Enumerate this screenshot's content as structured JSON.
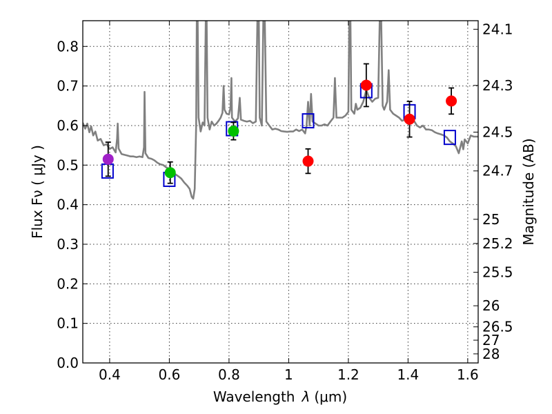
{
  "chart_data": {
    "type": "scatter",
    "xlabel_text": "Wavelength",
    "xlabel_symbol": "λ",
    "xlabel_unit": "(μm)",
    "ylabel_left": "Flux  Fν  ( μJy )",
    "ylabel_right": "Magnitude (AB)",
    "xlim": [
      0.31,
      1.635
    ],
    "ylim": [
      0.0,
      0.865
    ],
    "x_ticks": [
      {
        "v": 0.4,
        "label": "0.4"
      },
      {
        "v": 0.6,
        "label": "0.6"
      },
      {
        "v": 0.8,
        "label": "0.8"
      },
      {
        "v": 1.0,
        "label": "1"
      },
      {
        "v": 1.2,
        "label": "1.2"
      },
      {
        "v": 1.4,
        "label": "1.4"
      },
      {
        "v": 1.6,
        "label": "1.6"
      }
    ],
    "y_ticks": [
      {
        "v": 0.0,
        "label": "0.0"
      },
      {
        "v": 0.1,
        "label": "0.1"
      },
      {
        "v": 0.2,
        "label": "0.2"
      },
      {
        "v": 0.3,
        "label": "0.3"
      },
      {
        "v": 0.4,
        "label": "0.4"
      },
      {
        "v": 0.5,
        "label": "0.5"
      },
      {
        "v": 0.6,
        "label": "0.6"
      },
      {
        "v": 0.7,
        "label": "0.7"
      },
      {
        "v": 0.8,
        "label": "0.8"
      }
    ],
    "mag_ticks": [
      {
        "flux": 0.8434,
        "label": "24.1"
      },
      {
        "flux": 0.7015,
        "label": "24.3"
      },
      {
        "flux": 0.5834,
        "label": "24.5"
      },
      {
        "flux": 0.4853,
        "label": "24.7"
      },
      {
        "flux": 0.3631,
        "label": "25"
      },
      {
        "flux": 0.302,
        "label": "25.2"
      },
      {
        "flux": 0.2291,
        "label": "25.5"
      },
      {
        "flux": 0.1445,
        "label": "26"
      },
      {
        "flux": 0.0912,
        "label": "26.5"
      },
      {
        "flux": 0.0575,
        "label": "27"
      },
      {
        "flux": 0.0229,
        "label": "28"
      }
    ],
    "observed_points": [
      {
        "band": "violet",
        "x": 0.395,
        "y": 0.515,
        "err": 0.043,
        "color": "#a020c8"
      },
      {
        "band": "green-1",
        "x": 0.603,
        "y": 0.481,
        "err": 0.027,
        "color": "#00c000"
      },
      {
        "band": "green-2",
        "x": 0.815,
        "y": 0.586,
        "err": 0.022,
        "color": "#00c000"
      },
      {
        "band": "red-1",
        "x": 1.065,
        "y": 0.51,
        "err": 0.031,
        "color": "#ff0000"
      },
      {
        "band": "red-2",
        "x": 1.26,
        "y": 0.702,
        "err": 0.054,
        "color": "#ff0000"
      },
      {
        "band": "red-3",
        "x": 1.405,
        "y": 0.616,
        "err": 0.045,
        "color": "#ff0000"
      },
      {
        "band": "red-4",
        "x": 1.545,
        "y": 0.662,
        "err": 0.033,
        "color": "#ff0000"
      }
    ],
    "model_points": [
      {
        "x": 0.393,
        "y": 0.485
      },
      {
        "x": 0.6,
        "y": 0.464
      },
      {
        "x": 0.81,
        "y": 0.592
      },
      {
        "x": 1.065,
        "y": 0.612
      },
      {
        "x": 1.26,
        "y": 0.688
      },
      {
        "x": 1.405,
        "y": 0.635
      },
      {
        "x": 1.54,
        "y": 0.57
      }
    ],
    "sed_curve": [
      [
        0.31,
        0.607
      ],
      [
        0.318,
        0.592
      ],
      [
        0.325,
        0.605
      ],
      [
        0.332,
        0.583
      ],
      [
        0.338,
        0.598
      ],
      [
        0.345,
        0.575
      ],
      [
        0.352,
        0.585
      ],
      [
        0.36,
        0.562
      ],
      [
        0.37,
        0.566
      ],
      [
        0.38,
        0.55
      ],
      [
        0.39,
        0.553
      ],
      [
        0.4,
        0.541
      ],
      [
        0.41,
        0.545
      ],
      [
        0.42,
        0.532
      ],
      [
        0.425,
        0.567
      ],
      [
        0.427,
        0.605
      ],
      [
        0.43,
        0.542
      ],
      [
        0.44,
        0.528
      ],
      [
        0.45,
        0.526
      ],
      [
        0.46,
        0.524
      ],
      [
        0.47,
        0.522
      ],
      [
        0.48,
        0.522
      ],
      [
        0.49,
        0.52
      ],
      [
        0.5,
        0.522
      ],
      [
        0.51,
        0.52
      ],
      [
        0.515,
        0.545
      ],
      [
        0.517,
        0.685
      ],
      [
        0.52,
        0.53
      ],
      [
        0.53,
        0.518
      ],
      [
        0.54,
        0.516
      ],
      [
        0.55,
        0.512
      ],
      [
        0.56,
        0.506
      ],
      [
        0.57,
        0.502
      ],
      [
        0.58,
        0.5
      ],
      [
        0.59,
        0.494
      ],
      [
        0.6,
        0.49
      ],
      [
        0.61,
        0.484
      ],
      [
        0.62,
        0.477
      ],
      [
        0.63,
        0.472
      ],
      [
        0.64,
        0.466
      ],
      [
        0.65,
        0.456
      ],
      [
        0.66,
        0.448
      ],
      [
        0.668,
        0.44
      ],
      [
        0.675,
        0.42
      ],
      [
        0.68,
        0.415
      ],
      [
        0.685,
        0.44
      ],
      [
        0.69,
        0.6
      ],
      [
        0.692,
        0.865
      ],
      [
        0.695,
        0.865
      ],
      [
        0.698,
        0.62
      ],
      [
        0.705,
        0.585
      ],
      [
        0.712,
        0.608
      ],
      [
        0.718,
        0.6
      ],
      [
        0.722,
        0.865
      ],
      [
        0.725,
        0.865
      ],
      [
        0.728,
        0.62
      ],
      [
        0.735,
        0.59
      ],
      [
        0.742,
        0.61
      ],
      [
        0.75,
        0.6
      ],
      [
        0.758,
        0.605
      ],
      [
        0.765,
        0.612
      ],
      [
        0.772,
        0.62
      ],
      [
        0.778,
        0.632
      ],
      [
        0.782,
        0.7
      ],
      [
        0.785,
        0.64
      ],
      [
        0.792,
        0.63
      ],
      [
        0.8,
        0.628
      ],
      [
        0.805,
        0.645
      ],
      [
        0.808,
        0.72
      ],
      [
        0.81,
        0.62
      ],
      [
        0.82,
        0.61
      ],
      [
        0.83,
        0.618
      ],
      [
        0.836,
        0.67
      ],
      [
        0.84,
        0.615
      ],
      [
        0.85,
        0.612
      ],
      [
        0.86,
        0.61
      ],
      [
        0.87,
        0.612
      ],
      [
        0.88,
        0.606
      ],
      [
        0.89,
        0.61
      ],
      [
        0.895,
        0.865
      ],
      [
        0.9,
        0.865
      ],
      [
        0.903,
        0.62
      ],
      [
        0.91,
        0.6
      ],
      [
        0.915,
        0.865
      ],
      [
        0.92,
        0.865
      ],
      [
        0.925,
        0.61
      ],
      [
        0.935,
        0.6
      ],
      [
        0.945,
        0.59
      ],
      [
        0.955,
        0.592
      ],
      [
        0.965,
        0.59
      ],
      [
        0.975,
        0.586
      ],
      [
        0.985,
        0.585
      ],
      [
        0.995,
        0.584
      ],
      [
        1.005,
        0.585
      ],
      [
        1.015,
        0.585
      ],
      [
        1.025,
        0.59
      ],
      [
        1.035,
        0.586
      ],
      [
        1.045,
        0.59
      ],
      [
        1.055,
        0.58
      ],
      [
        1.06,
        0.6
      ],
      [
        1.065,
        0.66
      ],
      [
        1.07,
        0.6
      ],
      [
        1.075,
        0.68
      ],
      [
        1.08,
        0.61
      ],
      [
        1.09,
        0.605
      ],
      [
        1.1,
        0.6
      ],
      [
        1.11,
        0.6
      ],
      [
        1.12,
        0.603
      ],
      [
        1.13,
        0.6
      ],
      [
        1.14,
        0.61
      ],
      [
        1.15,
        0.62
      ],
      [
        1.155,
        0.72
      ],
      [
        1.16,
        0.62
      ],
      [
        1.17,
        0.62
      ],
      [
        1.18,
        0.62
      ],
      [
        1.19,
        0.625
      ],
      [
        1.2,
        0.635
      ],
      [
        1.203,
        0.865
      ],
      [
        1.207,
        0.865
      ],
      [
        1.21,
        0.64
      ],
      [
        1.22,
        0.63
      ],
      [
        1.225,
        0.655
      ],
      [
        1.23,
        0.64
      ],
      [
        1.24,
        0.645
      ],
      [
        1.25,
        0.66
      ],
      [
        1.26,
        0.69
      ],
      [
        1.27,
        0.67
      ],
      [
        1.28,
        0.66
      ],
      [
        1.29,
        0.668
      ],
      [
        1.3,
        0.67
      ],
      [
        1.305,
        0.865
      ],
      [
        1.31,
        0.865
      ],
      [
        1.315,
        0.65
      ],
      [
        1.32,
        0.64
      ],
      [
        1.33,
        0.66
      ],
      [
        1.335,
        0.74
      ],
      [
        1.34,
        0.64
      ],
      [
        1.35,
        0.63
      ],
      [
        1.36,
        0.625
      ],
      [
        1.37,
        0.62
      ],
      [
        1.38,
        0.612
      ],
      [
        1.39,
        0.615
      ],
      [
        1.4,
        0.61
      ],
      [
        1.41,
        0.615
      ],
      [
        1.42,
        0.612
      ],
      [
        1.43,
        0.6
      ],
      [
        1.44,
        0.595
      ],
      [
        1.45,
        0.6
      ],
      [
        1.46,
        0.59
      ],
      [
        1.47,
        0.59
      ],
      [
        1.48,
        0.588
      ],
      [
        1.49,
        0.583
      ],
      [
        1.5,
        0.58
      ],
      [
        1.51,
        0.578
      ],
      [
        1.52,
        0.575
      ],
      [
        1.53,
        0.57
      ],
      [
        1.54,
        0.56
      ],
      [
        1.55,
        0.555
      ],
      [
        1.56,
        0.548
      ],
      [
        1.57,
        0.53
      ],
      [
        1.58,
        0.56
      ],
      [
        1.585,
        0.54
      ],
      [
        1.59,
        0.565
      ],
      [
        1.6,
        0.555
      ],
      [
        1.61,
        0.575
      ],
      [
        1.62,
        0.572
      ],
      [
        1.635,
        0.572
      ]
    ]
  }
}
